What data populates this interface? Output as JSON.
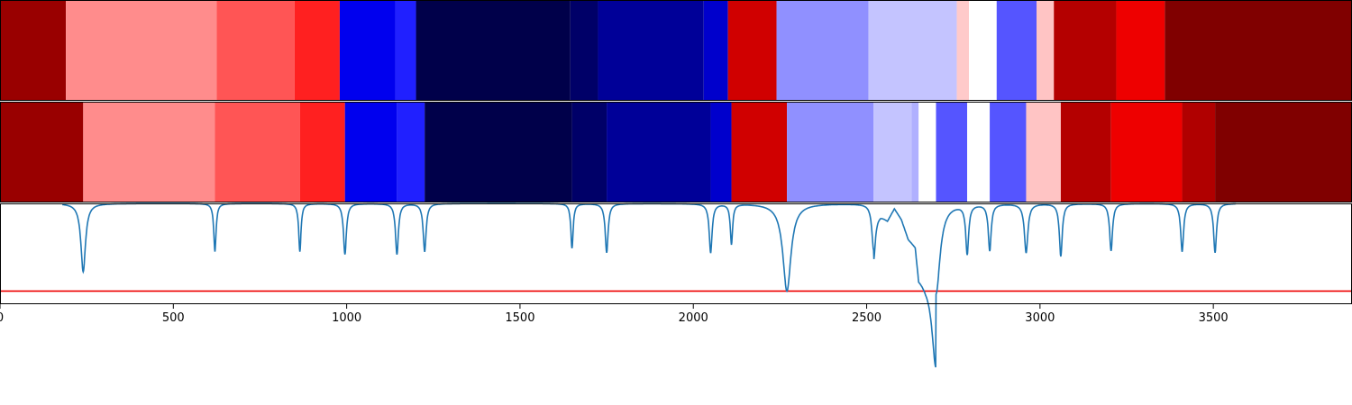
{
  "chart_data": [
    {
      "type": "heatmap",
      "panel": "top-segments",
      "xlim": [
        0,
        3900
      ],
      "segments": [
        {
          "start": 0,
          "end": 190,
          "color": "#990000"
        },
        {
          "start": 190,
          "end": 625,
          "color": "#ff8c8c"
        },
        {
          "start": 625,
          "end": 850,
          "color": "#ff5555"
        },
        {
          "start": 850,
          "end": 980,
          "color": "#ff2020"
        },
        {
          "start": 980,
          "end": 1140,
          "color": "#0000ee"
        },
        {
          "start": 1140,
          "end": 1200,
          "color": "#2020ff"
        },
        {
          "start": 1200,
          "end": 1645,
          "color": "#00004a"
        },
        {
          "start": 1645,
          "end": 1725,
          "color": "#000068"
        },
        {
          "start": 1725,
          "end": 2030,
          "color": "#000098"
        },
        {
          "start": 2030,
          "end": 2100,
          "color": "#0000cc"
        },
        {
          "start": 2100,
          "end": 2240,
          "color": "#d00000"
        },
        {
          "start": 2240,
          "end": 2505,
          "color": "#9090ff"
        },
        {
          "start": 2505,
          "end": 2760,
          "color": "#c4c4ff"
        },
        {
          "start": 2760,
          "end": 2795,
          "color": "#ffcaca"
        },
        {
          "start": 2795,
          "end": 2875,
          "color": "#ffffff"
        },
        {
          "start": 2875,
          "end": 2990,
          "color": "#5555ff"
        },
        {
          "start": 2990,
          "end": 3040,
          "color": "#ffc4c4"
        },
        {
          "start": 3040,
          "end": 3220,
          "color": "#b40000"
        },
        {
          "start": 3220,
          "end": 3360,
          "color": "#ee0000"
        },
        {
          "start": 3360,
          "end": 3900,
          "color": "#800000"
        }
      ]
    },
    {
      "type": "heatmap",
      "panel": "middle-segments",
      "xlim": [
        0,
        3900
      ],
      "segments": [
        {
          "start": 0,
          "end": 240,
          "color": "#990000"
        },
        {
          "start": 240,
          "end": 620,
          "color": "#ff8c8c"
        },
        {
          "start": 620,
          "end": 865,
          "color": "#ff5555"
        },
        {
          "start": 865,
          "end": 995,
          "color": "#ff2020"
        },
        {
          "start": 995,
          "end": 1145,
          "color": "#0000ee"
        },
        {
          "start": 1145,
          "end": 1225,
          "color": "#2020ff"
        },
        {
          "start": 1225,
          "end": 1650,
          "color": "#00004a"
        },
        {
          "start": 1650,
          "end": 1750,
          "color": "#000068"
        },
        {
          "start": 1750,
          "end": 2050,
          "color": "#000098"
        },
        {
          "start": 2050,
          "end": 2110,
          "color": "#0000cc"
        },
        {
          "start": 2110,
          "end": 2270,
          "color": "#d00000"
        },
        {
          "start": 2270,
          "end": 2520,
          "color": "#9090ff"
        },
        {
          "start": 2520,
          "end": 2630,
          "color": "#c4c4ff"
        },
        {
          "start": 2630,
          "end": 2650,
          "color": "#b0b0ff"
        },
        {
          "start": 2650,
          "end": 2700,
          "color": "#ffffff"
        },
        {
          "start": 2700,
          "end": 2790,
          "color": "#5555ff"
        },
        {
          "start": 2790,
          "end": 2855,
          "color": "#ffffff"
        },
        {
          "start": 2855,
          "end": 2960,
          "color": "#5555ff"
        },
        {
          "start": 2960,
          "end": 3060,
          "color": "#ffc4c4"
        },
        {
          "start": 3060,
          "end": 3205,
          "color": "#b40000"
        },
        {
          "start": 3205,
          "end": 3410,
          "color": "#ee0000"
        },
        {
          "start": 3410,
          "end": 3505,
          "color": "#b00000"
        },
        {
          "start": 3505,
          "end": 3900,
          "color": "#800000"
        }
      ]
    },
    {
      "type": "line",
      "panel": "signal",
      "xlim": [
        0,
        3900
      ],
      "ylim": [
        -0.15,
        1.0
      ],
      "line_color": "#1f77b4",
      "threshold": {
        "value": 0.0,
        "color": "#ee0000"
      },
      "baseline": 1.0,
      "dips": [
        {
          "x": 240,
          "depth": 0.78,
          "width": 8
        },
        {
          "x": 620,
          "depth": 0.55,
          "width": 4
        },
        {
          "x": 865,
          "depth": 0.55,
          "width": 4
        },
        {
          "x": 995,
          "depth": 0.58,
          "width": 5
        },
        {
          "x": 1145,
          "depth": 0.58,
          "width": 5
        },
        {
          "x": 1225,
          "depth": 0.55,
          "width": 5
        },
        {
          "x": 1650,
          "depth": 0.51,
          "width": 4
        },
        {
          "x": 1750,
          "depth": 0.56,
          "width": 5
        },
        {
          "x": 2050,
          "depth": 0.56,
          "width": 5
        },
        {
          "x": 2110,
          "depth": 0.46,
          "width": 4
        },
        {
          "x": 2270,
          "depth": 1.0,
          "width": 14
        },
        {
          "x": 2520,
          "depth": 0.52,
          "width": 6
        },
        {
          "x": 2700,
          "depth": 1.03,
          "width": 14
        },
        {
          "x": 2790,
          "depth": 0.56,
          "width": 5
        },
        {
          "x": 2855,
          "depth": 0.53,
          "width": 5
        },
        {
          "x": 2960,
          "depth": 0.56,
          "width": 6
        },
        {
          "x": 3060,
          "depth": 0.6,
          "width": 5
        },
        {
          "x": 3205,
          "depth": 0.54,
          "width": 5
        },
        {
          "x": 3410,
          "depth": 0.55,
          "width": 5
        },
        {
          "x": 3505,
          "depth": 0.56,
          "width": 5
        }
      ],
      "plateau": {
        "start": 2520,
        "end": 2700,
        "points": [
          {
            "x": 2540,
            "y": 0.88
          },
          {
            "x": 2560,
            "y": 0.82
          },
          {
            "x": 2580,
            "y": 0.96
          },
          {
            "x": 2600,
            "y": 0.84
          },
          {
            "x": 2620,
            "y": 0.62
          },
          {
            "x": 2640,
            "y": 0.55
          },
          {
            "x": 2650,
            "y": 0.18
          },
          {
            "x": 2670,
            "y": 0.14
          },
          {
            "x": 2690,
            "y": 0.16
          }
        ]
      },
      "xticks": [
        0,
        500,
        1000,
        1500,
        2000,
        2500,
        3000,
        3500
      ],
      "xtick_labels": [
        "0",
        "500",
        "1000",
        "1500",
        "2000",
        "2500",
        "3000",
        "3500"
      ]
    }
  ]
}
